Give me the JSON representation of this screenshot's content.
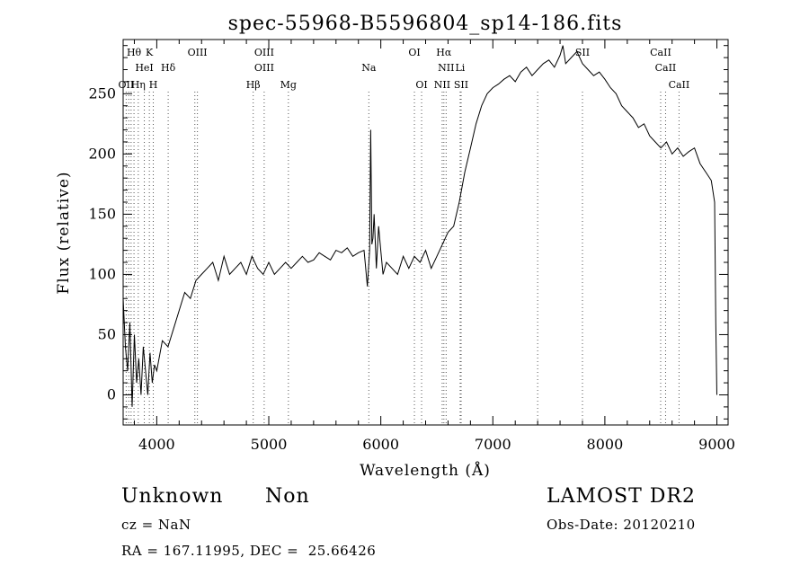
{
  "chart_data": {
    "type": "line",
    "title": "spec-55968-B5596804_sp14-186.fits",
    "xlabel": "Wavelength (Å)",
    "ylabel": "Flux (relative)",
    "xlim": [
      3700,
      9100
    ],
    "ylim": [
      -25,
      295
    ],
    "xticks": [
      4000,
      5000,
      6000,
      7000,
      8000,
      9000
    ],
    "yticks": [
      0,
      50,
      100,
      150,
      200,
      250
    ],
    "grid": false,
    "series": [
      {
        "x": [
          3700,
          3720,
          3740,
          3760,
          3780,
          3800,
          3820,
          3840,
          3860,
          3880,
          3900,
          3920,
          3940,
          3960,
          3980,
          4000,
          4050,
          4100,
          4150,
          4200,
          4250,
          4300,
          4350,
          4400,
          4450,
          4500,
          4550,
          4600,
          4650,
          4700,
          4750,
          4800,
          4850,
          4900,
          4950,
          5000,
          5050,
          5100,
          5150,
          5200,
          5250,
          5300,
          5350,
          5400,
          5450,
          5500,
          5550,
          5600,
          5650,
          5700,
          5750,
          5800,
          5850,
          5880,
          5900,
          5910,
          5920,
          5930,
          5940,
          5960,
          5980,
          6000,
          6020,
          6050,
          6100,
          6150,
          6200,
          6250,
          6300,
          6350,
          6400,
          6450,
          6500,
          6550,
          6600,
          6650,
          6700,
          6750,
          6800,
          6850,
          6900,
          6950,
          7000,
          7050,
          7100,
          7150,
          7200,
          7250,
          7300,
          7350,
          7400,
          7450,
          7500,
          7550,
          7600,
          7625,
          7650,
          7700,
          7750,
          7800,
          7850,
          7900,
          7950,
          8000,
          8050,
          8100,
          8150,
          8200,
          8250,
          8300,
          8350,
          8400,
          8450,
          8500,
          8550,
          8600,
          8650,
          8700,
          8750,
          8800,
          8850,
          8900,
          8950,
          8980,
          8990,
          9000
        ],
        "y": [
          80,
          40,
          20,
          60,
          -10,
          50,
          10,
          30,
          0,
          40,
          20,
          0,
          35,
          10,
          25,
          20,
          45,
          40,
          55,
          70,
          85,
          80,
          95,
          100,
          105,
          110,
          95,
          115,
          100,
          105,
          110,
          100,
          115,
          105,
          100,
          110,
          100,
          105,
          110,
          105,
          110,
          115,
          110,
          112,
          118,
          115,
          112,
          120,
          118,
          122,
          115,
          118,
          120,
          90,
          120,
          220,
          125,
          130,
          150,
          105,
          140,
          120,
          100,
          110,
          105,
          100,
          115,
          105,
          115,
          110,
          120,
          105,
          115,
          125,
          135,
          140,
          160,
          185,
          205,
          225,
          240,
          250,
          255,
          258,
          262,
          265,
          260,
          268,
          272,
          265,
          270,
          275,
          278,
          272,
          282,
          290,
          275,
          280,
          285,
          275,
          270,
          265,
          268,
          262,
          255,
          250,
          240,
          235,
          230,
          222,
          225,
          215,
          210,
          205,
          210,
          200,
          205,
          198,
          202,
          205,
          192,
          185,
          178,
          160,
          60,
          0
        ]
      }
    ],
    "lines": [
      {
        "label": "Hθ",
        "x": 3797,
        "row": 1
      },
      {
        "label": "K",
        "x": 3934,
        "row": 1
      },
      {
        "label": "OIII",
        "x": 4363,
        "row": 1
      },
      {
        "label": "OIII",
        "x": 4959,
        "row": 1
      },
      {
        "label": "OI",
        "x": 6300,
        "row": 1
      },
      {
        "label": "Hα",
        "x": 6563,
        "row": 1
      },
      {
        "label": "SII",
        "x": 7800,
        "row": 1
      },
      {
        "label": "CaII",
        "x": 8498,
        "row": 1
      },
      {
        "label": "HeI",
        "x": 3889,
        "row": 2
      },
      {
        "label": "Hδ",
        "x": 4102,
        "row": 2
      },
      {
        "label": "OIII",
        "x": 4959,
        "row": 2
      },
      {
        "label": "Na",
        "x": 5893,
        "row": 2
      },
      {
        "label": "NII",
        "x": 6583,
        "row": 2
      },
      {
        "label": "Li",
        "x": 6708,
        "row": 2
      },
      {
        "label": "CaII",
        "x": 8542,
        "row": 2
      },
      {
        "label": "OII",
        "x": 3727,
        "row": 3
      },
      {
        "label": "Hη",
        "x": 3835,
        "row": 3
      },
      {
        "label": "H",
        "x": 3969,
        "row": 3
      },
      {
        "label": "Hβ",
        "x": 4861,
        "row": 3
      },
      {
        "label": "Mg",
        "x": 5175,
        "row": 3
      },
      {
        "label": "OI",
        "x": 6364,
        "row": 3
      },
      {
        "label": "NII",
        "x": 6548,
        "row": 3
      },
      {
        "label": "SII",
        "x": 6717,
        "row": 3
      },
      {
        "label": "CaII",
        "x": 8662,
        "row": 3
      }
    ],
    "extra_lines": [
      3750,
      3771,
      3889,
      4340,
      6716,
      7400,
      7800
    ]
  },
  "footer": {
    "object_class": "Unknown",
    "subclass": "Non",
    "survey": "LAMOST DR2",
    "cz": "cz = NaN",
    "obs_date": "Obs-Date: 20120210",
    "coords": "RA = 167.11995, DEC =  25.66426"
  }
}
